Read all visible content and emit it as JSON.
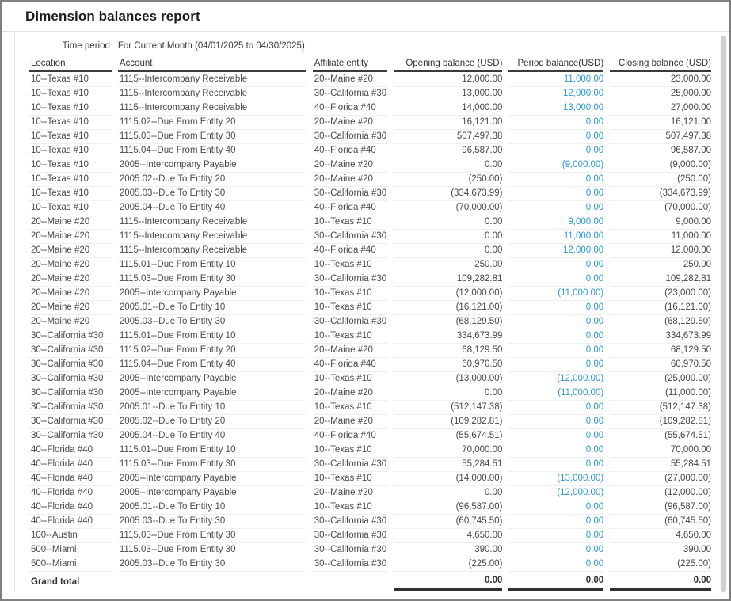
{
  "window": {
    "title": "Dimension balances report"
  },
  "report": {
    "meta": {
      "label": "Time period",
      "value": "For Current Month (04/01/2025 to 04/30/2025)"
    },
    "columns": [
      "Location",
      "Account",
      "Affiliate entity",
      "Opening balance (USD)",
      "Period balance(USD)",
      "Closing balance (USD)"
    ],
    "rows": [
      [
        "10--Texas #10",
        "1115--Intercompany Receivable",
        "20--Maine #20",
        "12,000.00",
        "11,000.00",
        "23,000.00"
      ],
      [
        "10--Texas #10",
        "1115--Intercompany Receivable",
        "30--California #30",
        "13,000.00",
        "12,000.00",
        "25,000.00"
      ],
      [
        "10--Texas #10",
        "1115--Intercompany Receivable",
        "40--Florida #40",
        "14,000.00",
        "13,000.00",
        "27,000.00"
      ],
      [
        "10--Texas #10",
        "1115.02--Due From Entity 20",
        "20--Maine #20",
        "16,121.00",
        "0.00",
        "16,121.00"
      ],
      [
        "10--Texas #10",
        "1115.03--Due From Entity 30",
        "30--California #30",
        "507,497.38",
        "0.00",
        "507,497.38"
      ],
      [
        "10--Texas #10",
        "1115.04--Due From Entity 40",
        "40--Florida #40",
        "96,587.00",
        "0.00",
        "96,587.00"
      ],
      [
        "10--Texas #10",
        "2005--Intercompany Payable",
        "20--Maine #20",
        "0.00",
        "(9,000.00)",
        "(9,000.00)"
      ],
      [
        "10--Texas #10",
        "2005.02--Due To Entity 20",
        "20--Maine #20",
        "(250.00)",
        "0.00",
        "(250.00)"
      ],
      [
        "10--Texas #10",
        "2005.03--Due To Entity 30",
        "30--California #30",
        "(334,673.99)",
        "0.00",
        "(334,673.99)"
      ],
      [
        "10--Texas #10",
        "2005.04--Due To Entity 40",
        "40--Florida #40",
        "(70,000.00)",
        "0.00",
        "(70,000.00)"
      ],
      [
        "20--Maine #20",
        "1115--Intercompany Receivable",
        "10--Texas #10",
        "0.00",
        "9,000.00",
        "9,000.00"
      ],
      [
        "20--Maine #20",
        "1115--Intercompany Receivable",
        "30--California #30",
        "0.00",
        "11,000.00",
        "11,000.00"
      ],
      [
        "20--Maine #20",
        "1115--Intercompany Receivable",
        "40--Florida #40",
        "0.00",
        "12,000.00",
        "12,000.00"
      ],
      [
        "20--Maine #20",
        "1115.01--Due From Entity 10",
        "10--Texas #10",
        "250.00",
        "0.00",
        "250.00"
      ],
      [
        "20--Maine #20",
        "1115.03--Due From Entity 30",
        "30--California #30",
        "109,282.81",
        "0.00",
        "109,282.81"
      ],
      [
        "20--Maine #20",
        "2005--Intercompany Payable",
        "10--Texas #10",
        "(12,000.00)",
        "(11,000.00)",
        "(23,000.00)"
      ],
      [
        "20--Maine #20",
        "2005.01--Due To Entity 10",
        "10--Texas #10",
        "(16,121.00)",
        "0.00",
        "(16,121.00)"
      ],
      [
        "20--Maine #20",
        "2005.03--Due To Entity 30",
        "30--California #30",
        "(68,129.50)",
        "0.00",
        "(68,129.50)"
      ],
      [
        "30--California #30",
        "1115.01--Due From Entity 10",
        "10--Texas #10",
        "334,673.99",
        "0.00",
        "334,673.99"
      ],
      [
        "30--California #30",
        "1115.02--Due From Entity 20",
        "20--Maine #20",
        "68,129.50",
        "0.00",
        "68,129.50"
      ],
      [
        "30--California #30",
        "1115.04--Due From Entity 40",
        "40--Florida #40",
        "60,970.50",
        "0.00",
        "60,970.50"
      ],
      [
        "30--California #30",
        "2005--Intercompany Payable",
        "10--Texas #10",
        "(13,000.00)",
        "(12,000.00)",
        "(25,000.00)"
      ],
      [
        "30--California #30",
        "2005--Intercompany Payable",
        "20--Maine #20",
        "0.00",
        "(11,000.00)",
        "(11,000.00)"
      ],
      [
        "30--California #30",
        "2005.01--Due To Entity 10",
        "10--Texas #10",
        "(512,147.38)",
        "0.00",
        "(512,147.38)"
      ],
      [
        "30--California #30",
        "2005.02--Due To Entity 20",
        "20--Maine #20",
        "(109,282.81)",
        "0.00",
        "(109,282.81)"
      ],
      [
        "30--California #30",
        "2005.04--Due To Entity 40",
        "40--Florida #40",
        "(55,674.51)",
        "0.00",
        "(55,674.51)"
      ],
      [
        "40--Florida #40",
        "1115.01--Due From Entity 10",
        "10--Texas #10",
        "70,000.00",
        "0.00",
        "70,000.00"
      ],
      [
        "40--Florida #40",
        "1115.03--Due From Entity 30",
        "30--California #30",
        "55,284.51",
        "0.00",
        "55,284.51"
      ],
      [
        "40--Florida #40",
        "2005--Intercompany Payable",
        "10--Texas #10",
        "(14,000.00)",
        "(13,000.00)",
        "(27,000.00)"
      ],
      [
        "40--Florida #40",
        "2005--Intercompany Payable",
        "20--Maine #20",
        "0.00",
        "(12,000.00)",
        "(12,000.00)"
      ],
      [
        "40--Florida #40",
        "2005.01--Due To Entity 10",
        "10--Texas #10",
        "(96,587.00)",
        "0.00",
        "(96,587.00)"
      ],
      [
        "40--Florida #40",
        "2005.03--Due To Entity 30",
        "30--California #30",
        "(60,745.50)",
        "0.00",
        "(60,745.50)"
      ],
      [
        "100--Austin",
        "1115.03--Due From Entity 30",
        "30--California #30",
        "4,650.00",
        "0.00",
        "4,650.00"
      ],
      [
        "500--Miami",
        "1115.03--Due From Entity 30",
        "30--California #30",
        "390.00",
        "0.00",
        "390.00"
      ],
      [
        "500--Miami",
        "2005.03--Due To Entity 30",
        "30--California #30",
        "(225.00)",
        "0.00",
        "(225.00)"
      ]
    ],
    "grand_total": {
      "label": "Grand total",
      "opening": "0.00",
      "period": "0.00",
      "closing": "0.00"
    },
    "colors": {
      "period_link_blue": "#2e9ad7",
      "header_rule": "#3b3a39",
      "window_border": "#7f7f7f"
    }
  }
}
